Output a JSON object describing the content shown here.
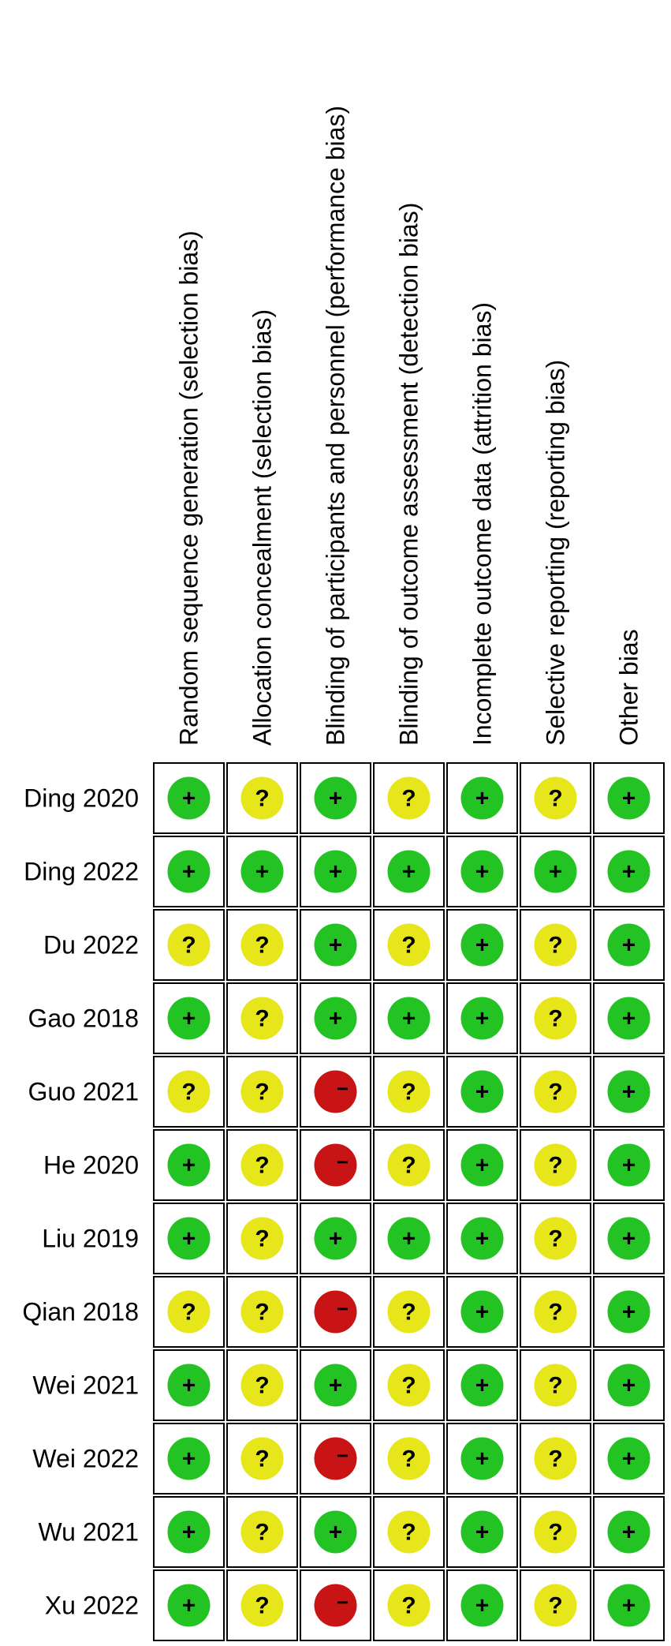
{
  "chart_data": {
    "type": "table",
    "domains": [
      "Random sequence generation (selection bias)",
      "Allocation concealment (selection bias)",
      "Blinding of participants and personnel (performance bias)",
      "Blinding of outcome assessment (detection bias)",
      "Incomplete outcome data (attrition bias)",
      "Selective reporting (reporting bias)",
      "Other bias"
    ],
    "legend": {
      "low": {
        "symbol": "+",
        "color": "#22c322"
      },
      "unclear": {
        "symbol": "?",
        "color": "#e6e61a"
      },
      "high": {
        "symbol": "−",
        "color": "#c81414"
      }
    },
    "studies": [
      {
        "name": "Ding 2020",
        "judgements": [
          "low",
          "unclear",
          "low",
          "unclear",
          "low",
          "unclear",
          "low"
        ]
      },
      {
        "name": "Ding 2022",
        "judgements": [
          "low",
          "low",
          "low",
          "low",
          "low",
          "low",
          "low"
        ]
      },
      {
        "name": "Du 2022",
        "judgements": [
          "unclear",
          "unclear",
          "low",
          "unclear",
          "low",
          "unclear",
          "low"
        ]
      },
      {
        "name": "Gao 2018",
        "judgements": [
          "low",
          "unclear",
          "low",
          "low",
          "low",
          "unclear",
          "low"
        ]
      },
      {
        "name": "Guo 2021",
        "judgements": [
          "unclear",
          "unclear",
          "high",
          "unclear",
          "low",
          "unclear",
          "low"
        ]
      },
      {
        "name": "He 2020",
        "judgements": [
          "low",
          "unclear",
          "high",
          "unclear",
          "low",
          "unclear",
          "low"
        ]
      },
      {
        "name": "Liu 2019",
        "judgements": [
          "low",
          "unclear",
          "low",
          "low",
          "low",
          "unclear",
          "low"
        ]
      },
      {
        "name": "Qian 2018",
        "judgements": [
          "unclear",
          "unclear",
          "high",
          "unclear",
          "low",
          "unclear",
          "low"
        ]
      },
      {
        "name": "Wei 2021",
        "judgements": [
          "low",
          "unclear",
          "low",
          "unclear",
          "low",
          "unclear",
          "low"
        ]
      },
      {
        "name": "Wei 2022",
        "judgements": [
          "low",
          "unclear",
          "high",
          "unclear",
          "low",
          "unclear",
          "low"
        ]
      },
      {
        "name": "Wu 2021",
        "judgements": [
          "low",
          "unclear",
          "low",
          "unclear",
          "low",
          "unclear",
          "low"
        ]
      },
      {
        "name": "Xu 2022",
        "judgements": [
          "low",
          "unclear",
          "high",
          "unclear",
          "low",
          "unclear",
          "low"
        ]
      }
    ]
  }
}
